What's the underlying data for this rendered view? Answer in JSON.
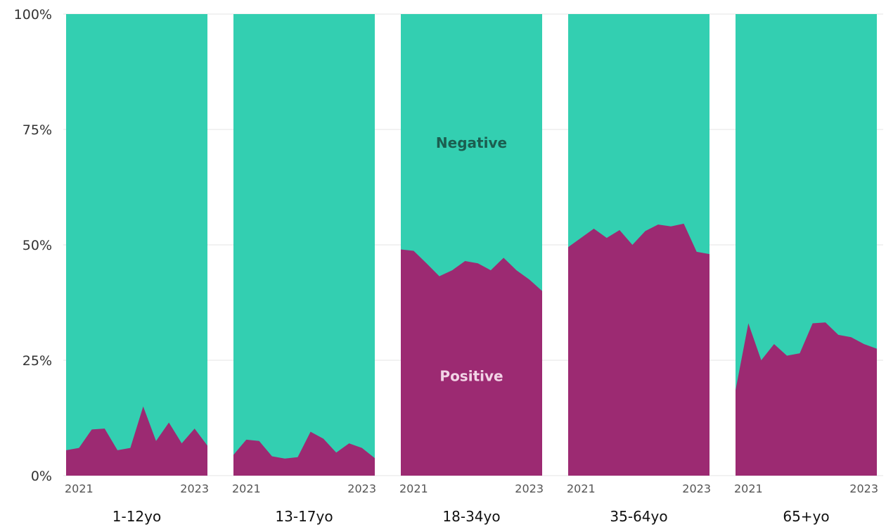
{
  "chart_data": {
    "type": "area",
    "stacked": "percent",
    "ylim": [
      0,
      100
    ],
    "y_ticks": [
      "0%",
      "25%",
      "50%",
      "75%",
      "100%"
    ],
    "y_tick_values": [
      0,
      25,
      50,
      75,
      100
    ],
    "grid": true,
    "x_tick_labels": [
      "2021",
      "2023"
    ],
    "colors": {
      "Negative": "#33cfb1",
      "Positive": "#9c2a72"
    },
    "series_labels": [
      {
        "name": "Negative",
        "panel": 2,
        "color": "#1b5e50"
      },
      {
        "name": "Positive",
        "panel": 2,
        "color": "#f2d4e6"
      }
    ],
    "panels": [
      {
        "label": "1-12yo",
        "positive": [
          5.5,
          6,
          10,
          10.2,
          5.5,
          6,
          15,
          7.5,
          11.5,
          7,
          10.2,
          6.5
        ]
      },
      {
        "label": "13-17yo",
        "positive": [
          4.5,
          7.8,
          7.5,
          4.2,
          3.7,
          4,
          9.5,
          8,
          5,
          7,
          6,
          3.8
        ]
      },
      {
        "label": "18-34yo",
        "positive": [
          49,
          48.7,
          46,
          43.2,
          44.5,
          46.5,
          46,
          44.5,
          47.2,
          44.5,
          42.5,
          40
        ]
      },
      {
        "label": "35-64yo",
        "positive": [
          49.5,
          51.5,
          53.5,
          51.5,
          53.2,
          50,
          53,
          54.4,
          54,
          54.6,
          48.5,
          48
        ]
      },
      {
        "label": "65+yo",
        "positive": [
          18.5,
          33,
          25,
          28.5,
          26,
          26.5,
          33,
          33.2,
          30.5,
          30,
          28.5,
          27.5
        ]
      }
    ]
  }
}
